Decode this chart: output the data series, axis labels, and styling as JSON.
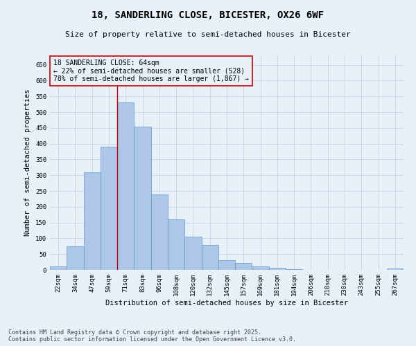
{
  "title": "18, SANDERLING CLOSE, BICESTER, OX26 6WF",
  "subtitle": "Size of property relative to semi-detached houses in Bicester",
  "xlabel": "Distribution of semi-detached houses by size in Bicester",
  "ylabel": "Number of semi-detached properties",
  "bar_color": "#aec6e8",
  "bar_edge_color": "#5b9bd5",
  "categories": [
    "22sqm",
    "34sqm",
    "47sqm",
    "59sqm",
    "71sqm",
    "83sqm",
    "96sqm",
    "108sqm",
    "120sqm",
    "132sqm",
    "145sqm",
    "157sqm",
    "169sqm",
    "181sqm",
    "194sqm",
    "206sqm",
    "218sqm",
    "230sqm",
    "243sqm",
    "255sqm",
    "267sqm"
  ],
  "values": [
    10,
    75,
    310,
    390,
    530,
    455,
    240,
    160,
    105,
    80,
    30,
    22,
    10,
    7,
    3,
    1,
    0,
    0,
    0,
    0,
    4
  ],
  "ylim": [
    0,
    680
  ],
  "yticks": [
    0,
    50,
    100,
    150,
    200,
    250,
    300,
    350,
    400,
    450,
    500,
    550,
    600,
    650
  ],
  "annotation_box_text": "18 SANDERLING CLOSE: 64sqm\n← 22% of semi-detached houses are smaller (528)\n78% of semi-detached houses are larger (1,867) →",
  "annotation_box_color": "#cc0000",
  "vline_x_index": 3.5,
  "vline_color": "#cc0000",
  "grid_color": "#c8d8e8",
  "background_color": "#e8f0f8",
  "footer_line1": "Contains HM Land Registry data © Crown copyright and database right 2025.",
  "footer_line2": "Contains public sector information licensed under the Open Government Licence v3.0.",
  "title_fontsize": 10,
  "subtitle_fontsize": 8,
  "axis_label_fontsize": 7.5,
  "tick_fontsize": 6.5,
  "annotation_fontsize": 7,
  "footer_fontsize": 6
}
